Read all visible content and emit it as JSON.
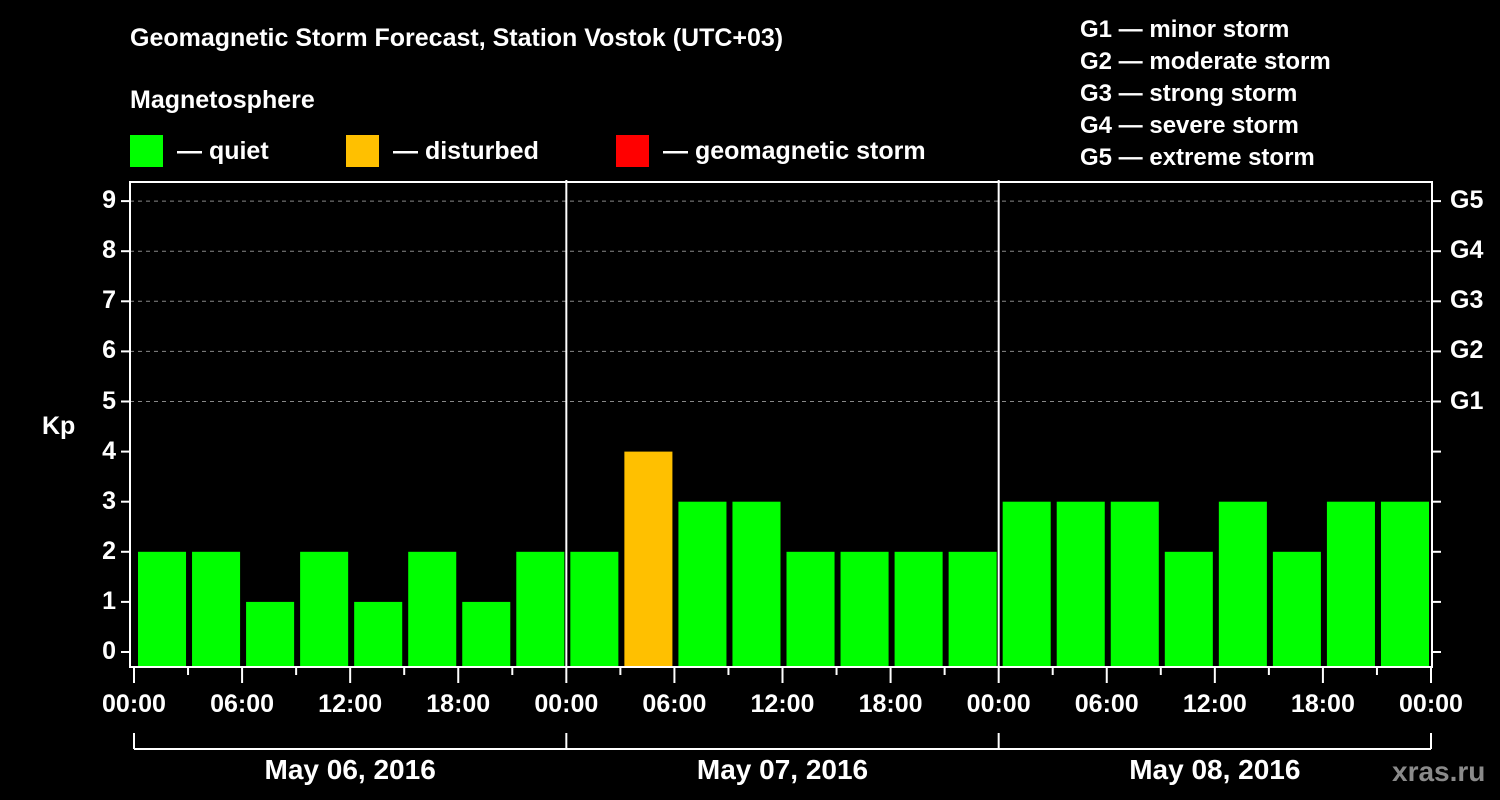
{
  "header": {
    "title": "Geomagnetic Storm Forecast, Station Vostok (UTC+03)",
    "subtitle": "Magnetosphere",
    "legend": [
      {
        "label": "— quiet",
        "color": "#00ff00"
      },
      {
        "label": "— disturbed",
        "color": "#ffc000"
      },
      {
        "label": "— geomagnetic storm",
        "color": "#ff0000"
      }
    ],
    "g_scale": [
      "G1 — minor storm",
      "G2 — moderate storm",
      "G3 — strong storm",
      "G4 — severe storm",
      "G5 — extreme storm"
    ]
  },
  "axes": {
    "ylabel": "Kp",
    "yticks": [
      "0",
      "1",
      "2",
      "3",
      "4",
      "5",
      "6",
      "7",
      "8",
      "9"
    ],
    "gticks": [
      "G1",
      "G2",
      "G3",
      "G4",
      "G5"
    ],
    "xticks": [
      "00:00",
      "06:00",
      "12:00",
      "18:00",
      "00:00",
      "06:00",
      "12:00",
      "18:00",
      "00:00",
      "06:00",
      "12:00",
      "18:00",
      "00:00"
    ],
    "dates": [
      "May 06, 2016",
      "May 07, 2016",
      "May 08, 2016"
    ]
  },
  "watermark": "xras.ru",
  "chart_data": {
    "type": "bar",
    "title": "Geomagnetic Storm Forecast, Station Vostok (UTC+03)",
    "subtitle": "Magnetosphere",
    "xlabel": "",
    "ylabel": "Kp",
    "ylim": [
      0,
      9
    ],
    "grid": "dashed horizontal at Kp 5-9",
    "right_axis": {
      "5": "G1",
      "6": "G2",
      "7": "G3",
      "8": "G4",
      "9": "G5"
    },
    "legend": [
      {
        "name": "quiet",
        "color": "#00ff00"
      },
      {
        "name": "disturbed",
        "color": "#ffc000"
      },
      {
        "name": "geomagnetic storm",
        "color": "#ff0000"
      }
    ],
    "categories": [
      "May 06 00:00",
      "May 06 03:00",
      "May 06 06:00",
      "May 06 09:00",
      "May 06 12:00",
      "May 06 15:00",
      "May 06 18:00",
      "May 06 21:00",
      "May 07 00:00",
      "May 07 03:00",
      "May 07 06:00",
      "May 07 09:00",
      "May 07 12:00",
      "May 07 15:00",
      "May 07 18:00",
      "May 07 21:00",
      "May 08 00:00",
      "May 08 03:00",
      "May 08 06:00",
      "May 08 09:00",
      "May 08 12:00",
      "May 08 15:00",
      "May 08 18:00",
      "May 08 21:00"
    ],
    "values": [
      2,
      2,
      1,
      2,
      1,
      2,
      1,
      2,
      2,
      4,
      3,
      3,
      2,
      2,
      2,
      2,
      3,
      3,
      3,
      2,
      3,
      2,
      3,
      3
    ],
    "status": [
      "quiet",
      "quiet",
      "quiet",
      "quiet",
      "quiet",
      "quiet",
      "quiet",
      "quiet",
      "quiet",
      "disturbed",
      "quiet",
      "quiet",
      "quiet",
      "quiet",
      "quiet",
      "quiet",
      "quiet",
      "quiet",
      "quiet",
      "quiet",
      "quiet",
      "quiet",
      "quiet",
      "quiet"
    ]
  }
}
